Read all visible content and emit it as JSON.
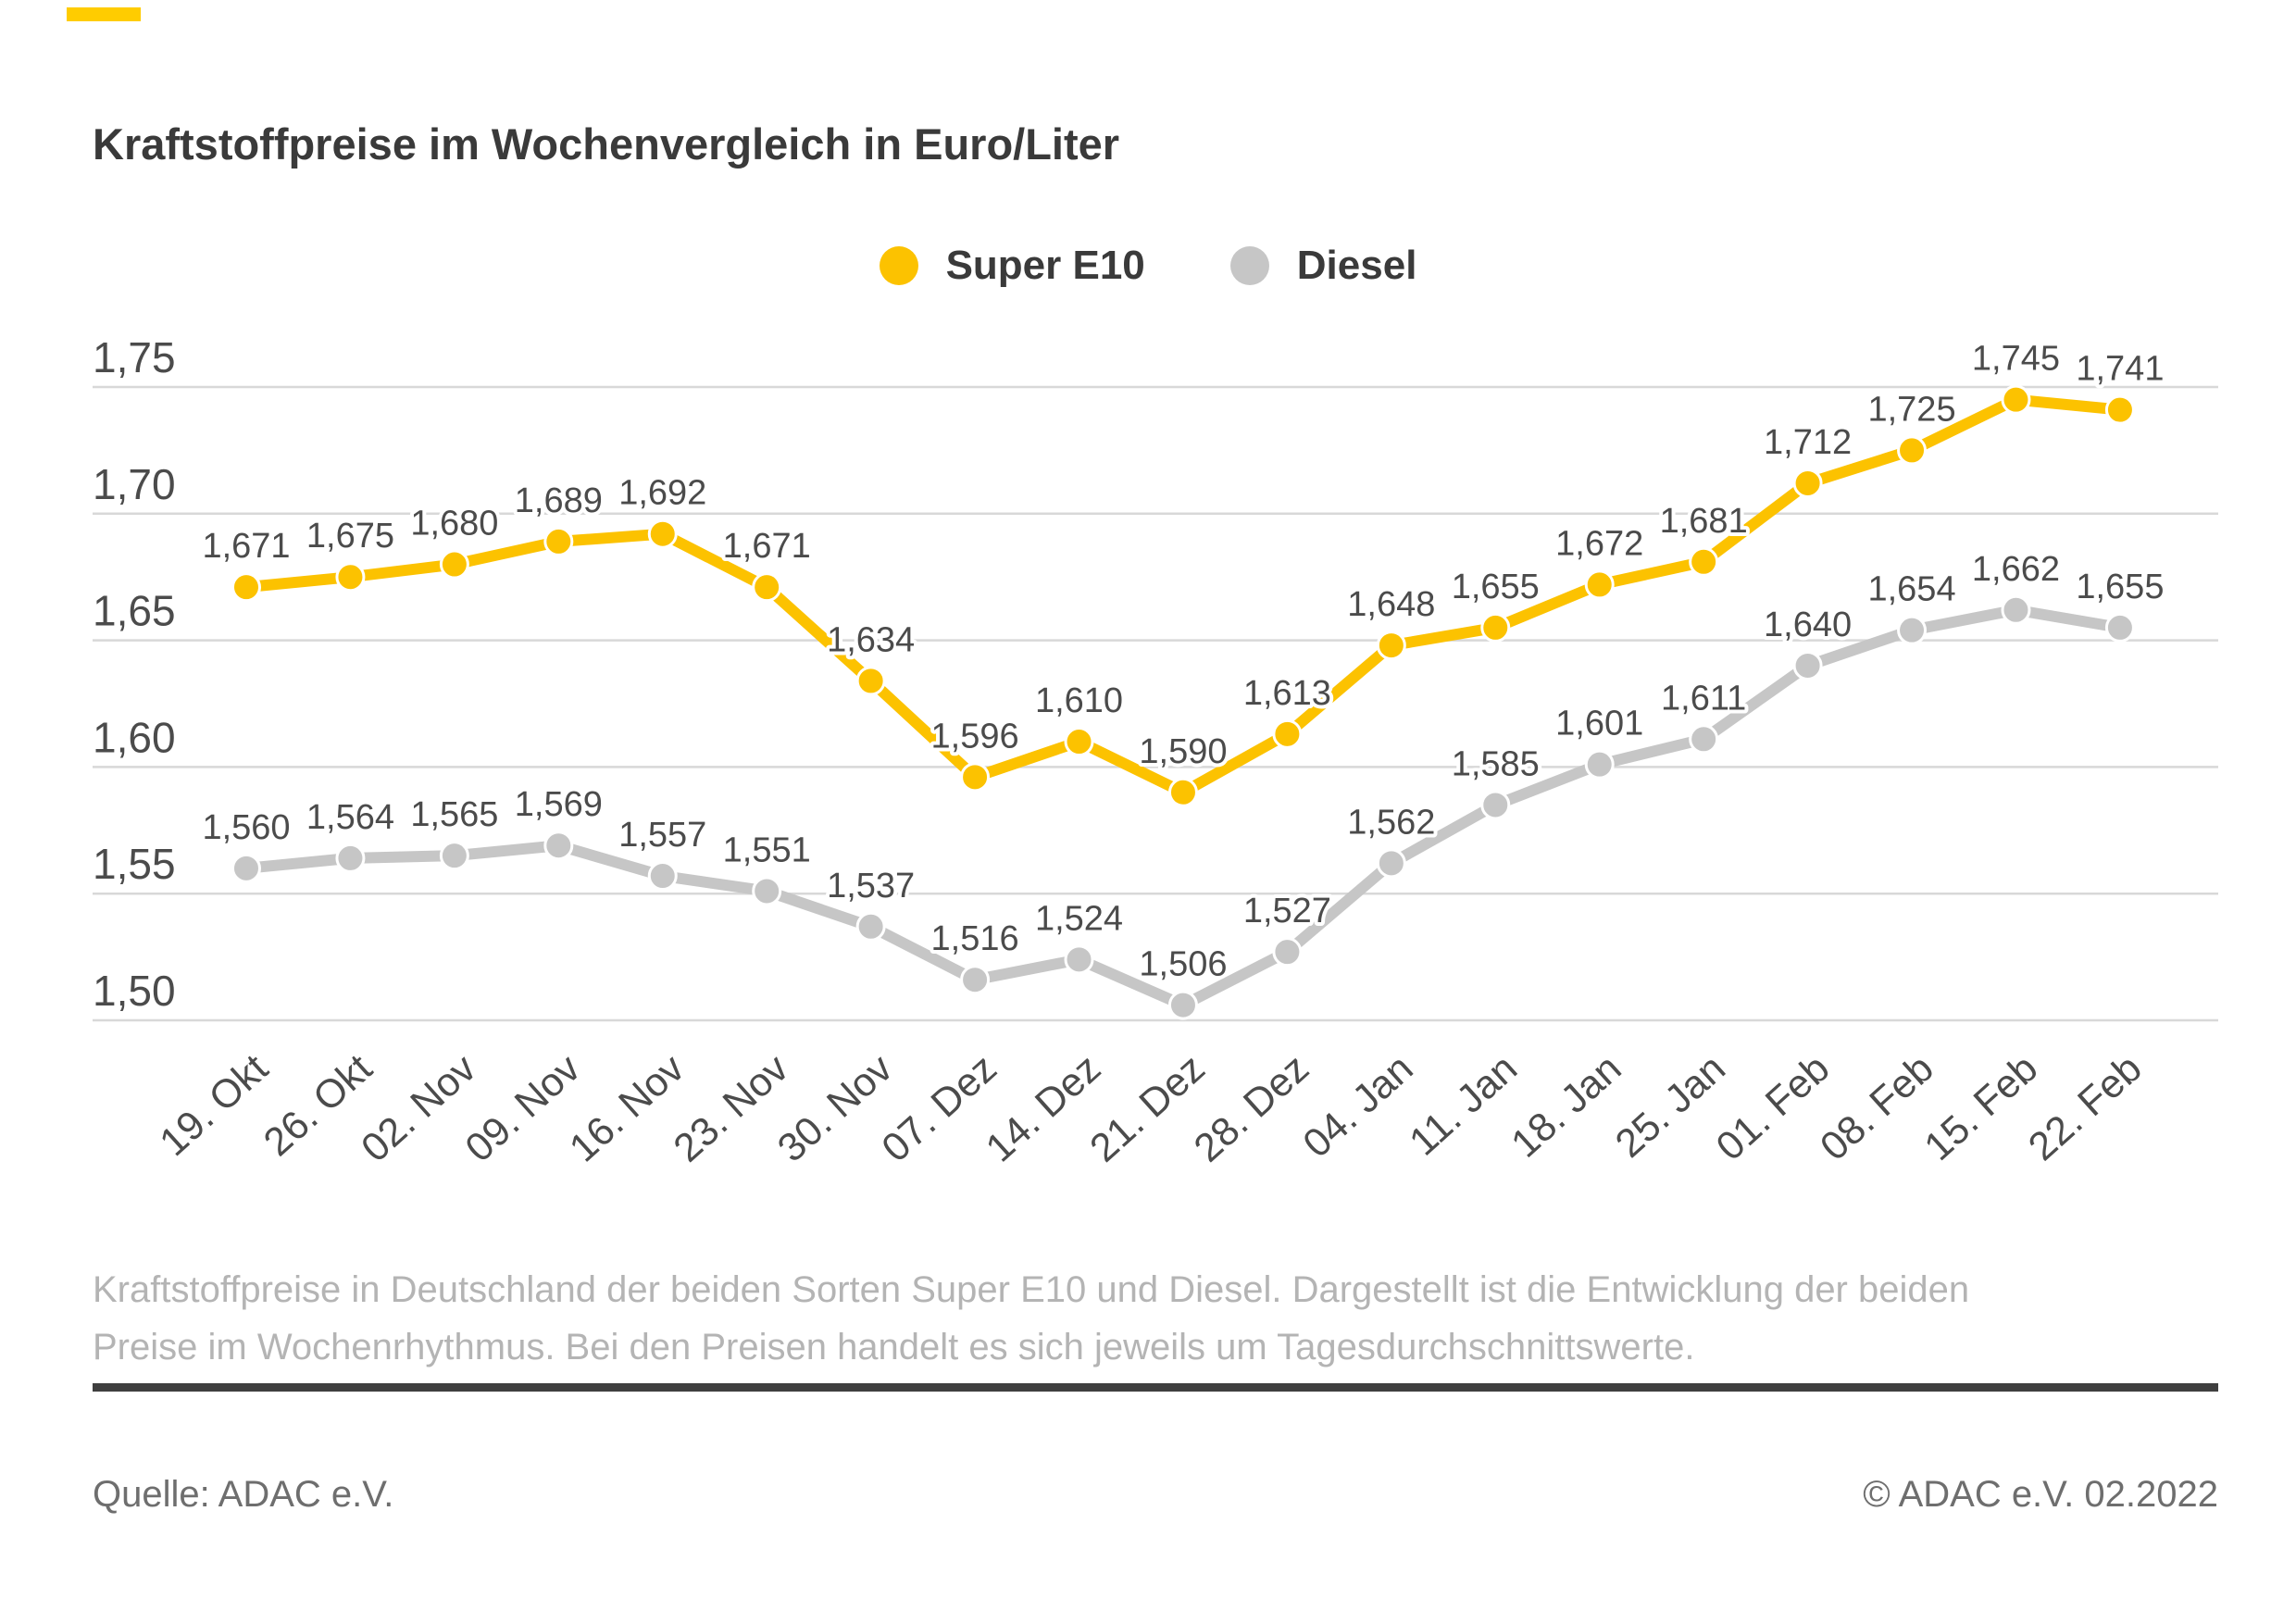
{
  "page": {
    "title": "Kraftstoffpreise im Wochenvergleich in Euro/Liter",
    "description": "Kraftstoffpreise in Deutschland der beiden Sorten Super E10 und Diesel. Dargestellt ist die Entwicklung der beiden Preise im Wochenrhythmus. Bei den Preisen handelt es sich jeweils um Tagesdurchschnittswerte.",
    "source": "Quelle: ADAC e.V.",
    "copyright": "© ADAC e.V. 02.2022",
    "accent_color": "#FFCC00"
  },
  "legend": [
    {
      "label": "Super E10",
      "color": "#FCC200"
    },
    {
      "label": "Diesel",
      "color": "#C6C6C6"
    }
  ],
  "chart_data": {
    "type": "line",
    "title": "Kraftstoffpreise im Wochenvergleich in Euro/Liter",
    "unit": "Euro/Liter",
    "grid": "horizontal",
    "legend_position": "top-center",
    "ylim": [
      1.5,
      1.75
    ],
    "yticks": [
      {
        "value": 1.75,
        "label": "1,75"
      },
      {
        "value": 1.7,
        "label": "1,70"
      },
      {
        "value": 1.65,
        "label": "1,65"
      },
      {
        "value": 1.6,
        "label": "1,60"
      },
      {
        "value": 1.55,
        "label": "1,55"
      },
      {
        "value": 1.5,
        "label": "1,50"
      }
    ],
    "categories": [
      "19. Okt",
      "26. Okt",
      "02. Nov",
      "09. Nov",
      "16. Nov",
      "23. Nov",
      "30. Nov",
      "07. Dez",
      "14. Dez",
      "21. Dez",
      "28. Dez",
      "04. Jan",
      "11. Jan",
      "18. Jan",
      "25. Jan",
      "01. Feb",
      "08. Feb",
      "15. Feb",
      "22. Feb"
    ],
    "series": [
      {
        "name": "Super E10",
        "color": "#FCC200",
        "values": [
          1.671,
          1.675,
          1.68,
          1.689,
          1.692,
          1.671,
          1.634,
          1.596,
          1.61,
          1.59,
          1.613,
          1.648,
          1.655,
          1.672,
          1.681,
          1.712,
          1.725,
          1.745,
          1.741
        ],
        "labels": [
          "1,671",
          "1,675",
          "1,680",
          "1,689",
          "1,692",
          "1,671",
          "1,634",
          "1,596",
          "1,610",
          "1,590",
          "1,613",
          "1,648",
          "1,655",
          "1,672",
          "1,681",
          "1,712",
          "1,725",
          "1,745",
          "1,741"
        ]
      },
      {
        "name": "Diesel",
        "color": "#C6C6C6",
        "values": [
          1.56,
          1.564,
          1.565,
          1.569,
          1.557,
          1.551,
          1.537,
          1.516,
          1.524,
          1.506,
          1.527,
          1.562,
          1.585,
          1.601,
          1.611,
          1.64,
          1.654,
          1.662,
          1.655
        ],
        "labels": [
          "1,560",
          "1,564",
          "1,565",
          "1,569",
          "1,557",
          "1,551",
          "1,537",
          "1,516",
          "1,524",
          "1,506",
          "1,527",
          "1,562",
          "1,585",
          "1,601",
          "1,611",
          "1,640",
          "1,654",
          "1,662",
          "1,655"
        ]
      }
    ]
  }
}
